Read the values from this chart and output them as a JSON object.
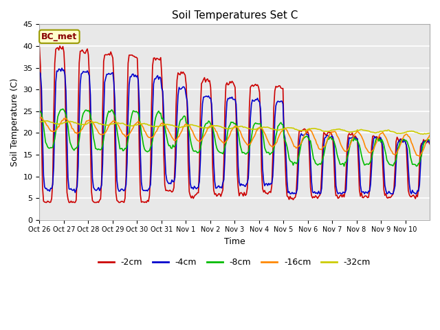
{
  "title": "Soil Temperatures Set C",
  "xlabel": "Time",
  "ylabel": "Soil Temperature (C)",
  "ylim": [
    0,
    45
  ],
  "plot_bg_color": "#e8e8e8",
  "label_name": "BC_met",
  "lines": {
    "-2cm": {
      "color": "#cc0000",
      "lw": 1.2
    },
    "-4cm": {
      "color": "#0000cc",
      "lw": 1.2
    },
    "-8cm": {
      "color": "#00bb00",
      "lw": 1.2
    },
    "-16cm": {
      "color": "#ff8800",
      "lw": 1.2
    },
    "-32cm": {
      "color": "#cccc00",
      "lw": 1.2
    }
  },
  "xtick_labels": [
    "Oct 26",
    "Oct 27",
    "Oct 28",
    "Oct 29",
    "Oct 30",
    "Oct 31",
    "Nov 1",
    "Nov 2",
    "Nov 3",
    "Nov 4",
    "Nov 5",
    "Nov 6",
    "Nov 7",
    "Nov 8",
    "Nov 9",
    "Nov 10"
  ],
  "ytick_values": [
    0,
    5,
    10,
    15,
    20,
    25,
    30,
    35,
    40,
    45
  ]
}
